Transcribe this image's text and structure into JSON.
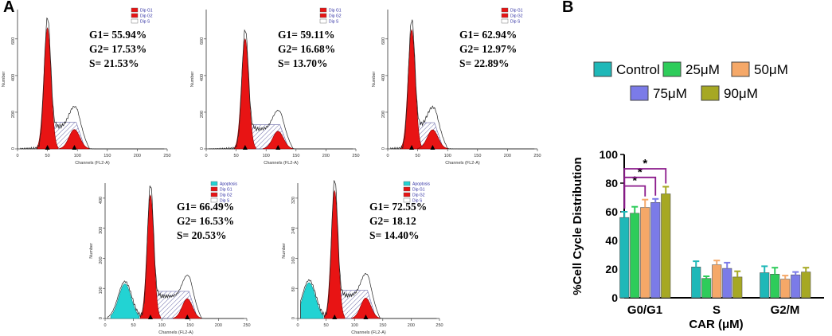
{
  "panel_labels": {
    "a": "A",
    "b": "B"
  },
  "histograms": [
    {
      "g1": "G1= 55.94%",
      "g2": "G2= 17.53%",
      "s": "S= 21.53%",
      "legend": [
        "Dip G1",
        "Dip G2",
        "Dip S"
      ],
      "xlabel": "Channels (FL2-A)",
      "ylabel": "Number",
      "xticks": [
        "0",
        "50",
        "100",
        "150",
        "200",
        "250"
      ],
      "yticks": [
        "0",
        "200",
        "400",
        "600"
      ],
      "g1_peak": 50,
      "g2_peak": 95,
      "peak_count": 660,
      "ymax": 760
    },
    {
      "g1": "G1= 59.11%",
      "g2": "G2= 16.68%",
      "s": "S= 13.70%",
      "legend": [
        "Dip G1",
        "Dip G2",
        "Dip S"
      ],
      "xlabel": "Channels (FL2-A)",
      "ylabel": "Number",
      "xticks": [
        "0",
        "50",
        "100",
        "150",
        "200",
        "250"
      ],
      "yticks": [
        "0",
        "200",
        "400",
        "600"
      ],
      "g1_peak": 65,
      "g2_peak": 120,
      "peak_count": 600,
      "ymax": 760
    },
    {
      "g1": "G1= 62.94%",
      "g2": "G2= 12.97%",
      "s": "S= 22.89%",
      "legend": [
        "Dip G1",
        "Dip G2",
        "Dip S"
      ],
      "xlabel": "Channels (FL2-A)",
      "ylabel": "Number",
      "xticks": [
        "0",
        "50",
        "100",
        "150",
        "200",
        "250"
      ],
      "yticks": [
        "0",
        "200",
        "400",
        "600"
      ],
      "g1_peak": 40,
      "g2_peak": 75,
      "peak_count": 650,
      "ymax": 760
    },
    {
      "g1": "G1= 66.49%",
      "g2": "G2= 16.53%",
      "s": "S= 20.53%",
      "legend": [
        "Apoptosis",
        "Dip G1",
        "Dip G2",
        "Dip S"
      ],
      "xlabel": "Channels (FL2-A)",
      "ylabel": "Number",
      "xticks": [
        "0",
        "50",
        "100",
        "150",
        "200",
        "250"
      ],
      "yticks": [
        "0",
        "100",
        "200",
        "300",
        "400"
      ],
      "g1_peak": 80,
      "g2_peak": 145,
      "peak_count": 410,
      "ymax": 450,
      "apoptosis_peak": 35
    },
    {
      "g1": "G1= 72.55%",
      "g2": "G2= 18.12",
      "s": "S= 14.40%",
      "legend": [
        "Apoptosis",
        "Dip G1",
        "Dip G2",
        "Dip S"
      ],
      "xlabel": "Channels (FL2-A)",
      "ylabel": "Number",
      "xticks": [
        "0",
        "50",
        "100",
        "150",
        "200",
        "250"
      ],
      "yticks": [
        "0",
        "80",
        "160",
        "240",
        "320"
      ],
      "g1_peak": 65,
      "g2_peak": 120,
      "peak_count": 340,
      "ymax": 360,
      "apoptosis_peak": 20
    }
  ],
  "chart_data": {
    "type": "bar",
    "title": "",
    "xlabel": "CAR (μM)",
    "ylabel": "%Cell Cycle Distribution",
    "categories": [
      "G0/G1",
      "S",
      "G2/M"
    ],
    "ylim": [
      0,
      100
    ],
    "yticks": [
      "0",
      "20",
      "40",
      "60",
      "80",
      "100"
    ],
    "legend_position": "top",
    "series": [
      {
        "name": "Control",
        "color": "#1fb8b8",
        "values": [
          56,
          21.5,
          17.5
        ],
        "errors": [
          4,
          4,
          4.5
        ]
      },
      {
        "name": "25μM",
        "color": "#2ecc5a",
        "values": [
          59,
          13.5,
          16.5
        ],
        "errors": [
          4.5,
          1.5,
          4.5
        ]
      },
      {
        "name": "50μM",
        "color": "#f5a868",
        "values": [
          63,
          23,
          13
        ],
        "errors": [
          5.5,
          3,
          2.5
        ]
      },
      {
        "name": "75μM",
        "color": "#7b7be8",
        "values": [
          66.5,
          20.5,
          16
        ],
        "errors": [
          2.5,
          4,
          2
        ]
      },
      {
        "name": "90μM",
        "color": "#a6a823",
        "values": [
          72.5,
          14.5,
          18
        ],
        "errors": [
          5,
          4,
          3
        ]
      }
    ],
    "significance": [
      {
        "from": "Control",
        "to": "50μM",
        "label": "*"
      },
      {
        "from": "Control",
        "to": "75μM",
        "label": "*"
      },
      {
        "from": "Control",
        "to": "90μM",
        "label": "*"
      }
    ]
  }
}
